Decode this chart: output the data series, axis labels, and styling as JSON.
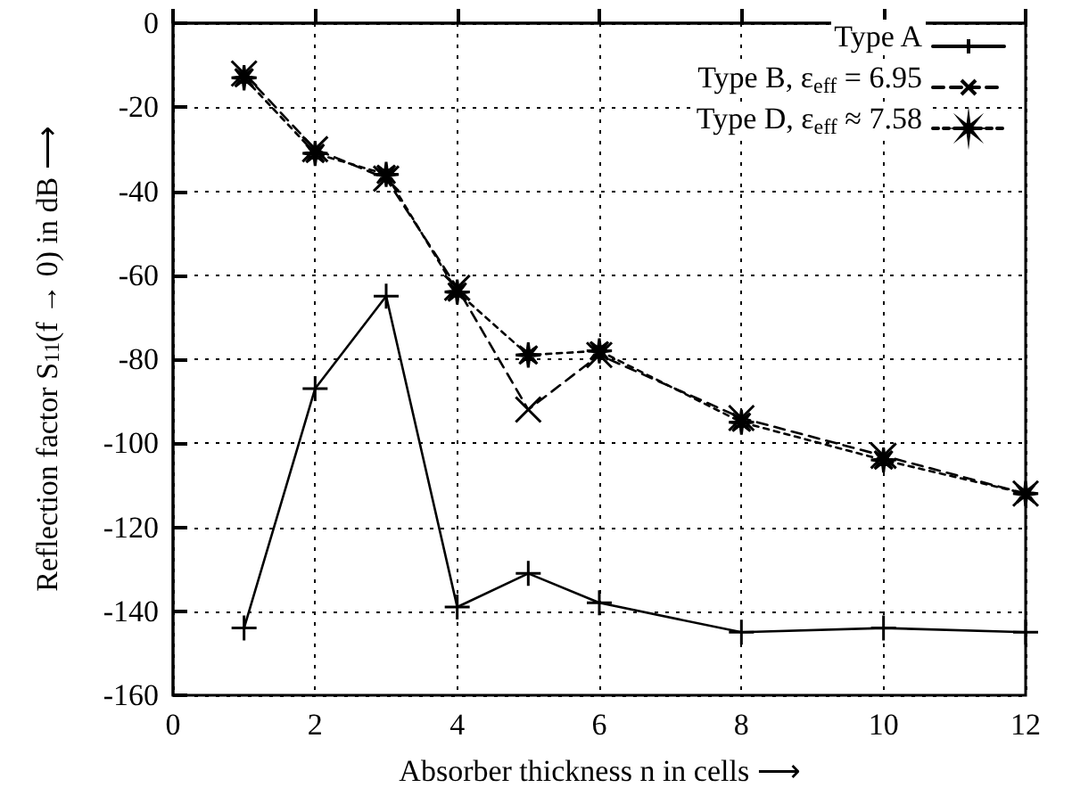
{
  "chart_data": {
    "type": "line",
    "xlabel": "Absorber thickness n in cells ⟶",
    "ylabel": "Reflection factor S$_{11}$(f → 0) in dB ⟶",
    "x": [
      1,
      2,
      3,
      4,
      5,
      6,
      8,
      10,
      12
    ],
    "series": [
      {
        "name": "Type A",
        "color": "#000000",
        "marker": "plus",
        "line_style": "solid",
        "values": [
          -144,
          -87,
          -65,
          -139,
          -131,
          -138,
          -145,
          -144,
          -145
        ]
      },
      {
        "name": "Type B, ε$_{eff}$ = 6.95",
        "color": "#000000",
        "marker": "cross",
        "line_style": "dashed",
        "values": [
          -12,
          -30,
          -37,
          -63,
          -92,
          -79,
          -94,
          -103,
          -112
        ]
      },
      {
        "name": "Type D, ε$_{eff}$ ≈ 7.58",
        "color": "#000000",
        "marker": "star",
        "line_style": "dotted",
        "values": [
          -13,
          -31,
          -36,
          -64,
          -79,
          -78,
          -95,
          -104,
          -112
        ]
      }
    ],
    "xlim": [
      0,
      12
    ],
    "xticks": [
      0,
      2,
      4,
      6,
      8,
      10,
      12
    ],
    "ylim": [
      -160,
      0
    ],
    "yticks": [
      -160,
      -140,
      -120,
      -100,
      -80,
      -60,
      -40,
      -20,
      0
    ],
    "grid": true,
    "legend": "top right"
  }
}
